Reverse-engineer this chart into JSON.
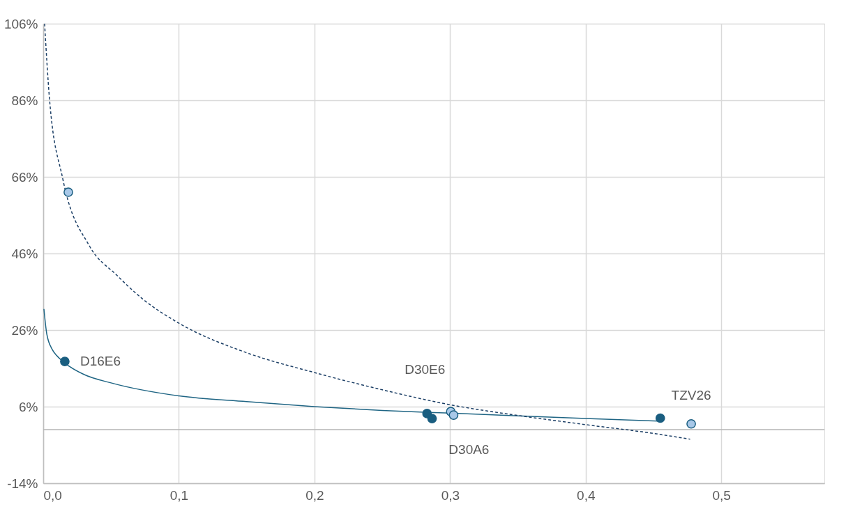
{
  "chart_data": {
    "type": "scatter",
    "xlim": [
      0,
      0.576
    ],
    "ylim": [
      -14,
      106
    ],
    "xticks": [
      {
        "value": 0,
        "label": "0,0"
      },
      {
        "value": 0.1,
        "label": "0,1"
      },
      {
        "value": 0.2,
        "label": "0,2"
      },
      {
        "value": 0.3,
        "label": "0,3"
      },
      {
        "value": 0.4,
        "label": "0,4"
      },
      {
        "value": 0.5,
        "label": "0,5"
      }
    ],
    "yticks": [
      {
        "value": -14,
        "label": "-14%"
      },
      {
        "value": 6,
        "label": "6%"
      },
      {
        "value": 26,
        "label": "26%"
      },
      {
        "value": 46,
        "label": "46%"
      },
      {
        "value": 66,
        "label": "66%"
      },
      {
        "value": 86,
        "label": "86%"
      },
      {
        "value": 106,
        "label": "106%"
      }
    ],
    "grid": true,
    "series": [
      {
        "type": "line",
        "color": "#1f6584",
        "line_style": "solid",
        "marker": "none",
        "x": [
          0.0005,
          0.0026,
          0.0067,
          0.01,
          0.0159,
          0.03,
          0.05,
          0.1,
          0.15,
          0.2,
          0.25,
          0.3,
          0.35,
          0.4,
          0.455
        ],
        "values": [
          31.5,
          25,
          20.9,
          19.3,
          17.4,
          14.4,
          12.2,
          8.8,
          7.3,
          6.0,
          5.0,
          4.3,
          3.6,
          2.9,
          2.2
        ]
      },
      {
        "type": "line",
        "color": "#1c3f66",
        "line_style": "dashed",
        "marker": "none",
        "x": [
          0.001,
          0.0046,
          0.0144,
          0.034,
          0.054,
          0.073,
          0.1,
          0.149,
          0.2,
          0.25,
          0.3,
          0.35,
          0.4,
          0.45,
          0.477
        ],
        "values": [
          106,
          86.4,
          65.5,
          48,
          40.4,
          34.2,
          27.8,
          20.2,
          14.9,
          10.4,
          6.5,
          3.7,
          1.3,
          -1.0,
          -2.5
        ]
      },
      {
        "type": "scatter",
        "color": "#1a5e80",
        "marker": "circle",
        "x": [
          0.0159,
          0.283,
          0.2867,
          0.455
        ],
        "values": [
          17.8,
          4.2,
          2.9,
          3.0
        ]
      },
      {
        "type": "scatter",
        "color": "#a8c8e8",
        "marker": "circle",
        "x": [
          0.0185,
          0.3005,
          0.3026,
          0.4778
        ],
        "values": [
          62,
          4.7,
          3.8,
          1.5
        ]
      }
    ],
    "ref_lines": [
      {
        "axis": "y",
        "value": 0,
        "color": "#b4b4b4"
      }
    ],
    "annotations": [
      {
        "text": "D16E6",
        "x": 0.0159,
        "y": 17.8
      },
      {
        "text": "D30E6",
        "x": 0.283,
        "y": 4.2
      },
      {
        "text": "D30A6",
        "x": 0.3026,
        "y": 3.8
      },
      {
        "text": "TZV26",
        "x": 0.4778,
        "y": 1.5
      }
    ]
  }
}
